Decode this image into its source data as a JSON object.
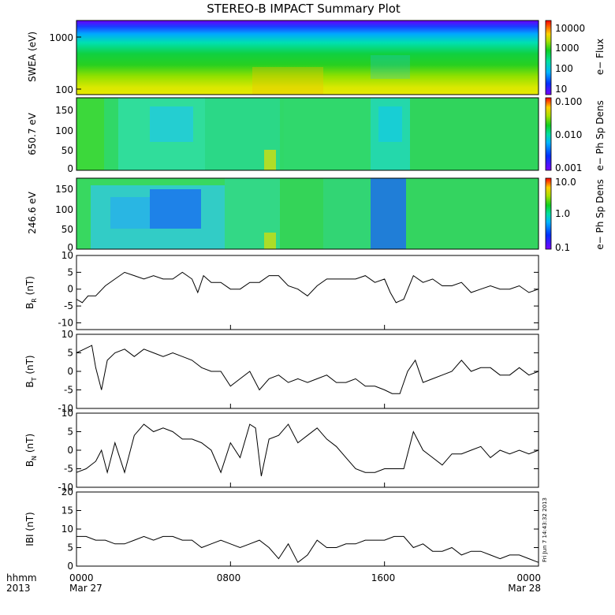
{
  "title": "STEREO-B IMPACT Summary Plot",
  "timestamp_label": "Fri Jun  7 14:43:32 2013",
  "x_axis": {
    "row1_label": "hhmm",
    "row2_label": "2013",
    "ticks": [
      "0000",
      "0800",
      "1600",
      "0000"
    ],
    "dates": [
      "Mar 27",
      "Mar 28"
    ]
  },
  "colors": {
    "trace": "#000000",
    "spectrum_scale": [
      "#7a00ff",
      "#0030ff",
      "#00b4ff",
      "#00e0a0",
      "#10d020",
      "#a8e000",
      "#ffd000",
      "#ff6000",
      "#ff0000"
    ]
  },
  "chart_data": [
    {
      "type": "heatmap",
      "ylabel": "SWEA (eV)",
      "yscale": "log",
      "yticks": [
        "1000",
        "100"
      ],
      "colorbar": {
        "label": "e− Flux",
        "ticks": [
          "10000",
          "1000",
          "100",
          "10"
        ]
      }
    },
    {
      "type": "heatmap",
      "ylabel": "650.7 eV",
      "yticks": [
        "150",
        "100",
        "50",
        "0"
      ],
      "ylim": [
        0,
        180
      ],
      "colorbar": {
        "label": "e− Ph Sp Dens",
        "ticks": [
          "0.100",
          "0.010",
          "0.001"
        ]
      }
    },
    {
      "type": "heatmap",
      "ylabel": "246.6 eV",
      "yticks": [
        "150",
        "100",
        "50",
        "0"
      ],
      "ylim": [
        0,
        180
      ],
      "colorbar": {
        "label": "e− Ph Sp Dens",
        "ticks": [
          "10.0",
          "1.0",
          "0.1"
        ]
      }
    },
    {
      "type": "line",
      "ylabel": "B_R (nT)",
      "ylabel_main": "B",
      "ylabel_sub": "R",
      "ylabel_tail": " (nT)",
      "ylim": [
        -12,
        10
      ],
      "yticks": [
        "10",
        "5",
        "0",
        "-5",
        "-10"
      ],
      "x": [
        0,
        0.3,
        0.6,
        1,
        1.5,
        2,
        2.5,
        3,
        3.5,
        4,
        4.5,
        5,
        5.5,
        6,
        6.3,
        6.6,
        7,
        7.5,
        8,
        8.5,
        9,
        9.5,
        10,
        10.5,
        11,
        11.5,
        12,
        12.5,
        13,
        13.5,
        14,
        14.5,
        15,
        15.5,
        16,
        16.3,
        16.6,
        17,
        17.5,
        18,
        18.5,
        19,
        19.5,
        20,
        20.5,
        21,
        21.5,
        22,
        22.5,
        23,
        23.5,
        24
      ],
      "y": [
        -3,
        -4,
        -2,
        -2,
        1,
        3,
        5,
        4,
        3,
        4,
        3,
        3,
        5,
        3,
        -1,
        4,
        2,
        2,
        0,
        0,
        2,
        2,
        4,
        4,
        1,
        0,
        -2,
        1,
        3,
        3,
        3,
        3,
        4,
        2,
        3,
        -1,
        -4,
        -3,
        4,
        2,
        3,
        1,
        1,
        2,
        -1,
        0,
        1,
        0,
        0,
        1,
        -1,
        0
      ]
    },
    {
      "type": "line",
      "ylabel": "B_T (nT)",
      "ylabel_main": "B",
      "ylabel_sub": "T",
      "ylabel_tail": " (nT)",
      "ylim": [
        -10,
        10
      ],
      "yticks": [
        "10",
        "5",
        "0",
        "-5",
        "-10"
      ],
      "x": [
        0,
        0.4,
        0.8,
        1,
        1.3,
        1.6,
        2,
        2.5,
        3,
        3.5,
        4,
        4.5,
        5,
        5.5,
        6,
        6.5,
        7,
        7.5,
        8,
        8.5,
        9,
        9.5,
        10,
        10.5,
        11,
        11.5,
        12,
        12.5,
        13,
        13.5,
        14,
        14.5,
        15,
        15.5,
        16,
        16.4,
        16.8,
        17.2,
        17.6,
        18,
        18.5,
        19,
        19.5,
        20,
        20.5,
        21,
        21.5,
        22,
        22.5,
        23,
        23.5,
        24
      ],
      "y": [
        5,
        6,
        7,
        1,
        -5,
        3,
        5,
        6,
        4,
        6,
        5,
        4,
        5,
        4,
        3,
        1,
        0,
        0,
        -4,
        -2,
        0,
        -5,
        -2,
        -1,
        -3,
        -2,
        -3,
        -2,
        -1,
        -3,
        -3,
        -2,
        -4,
        -4,
        -5,
        -6,
        -6,
        0,
        3,
        -3,
        -2,
        -1,
        0,
        3,
        0,
        1,
        1,
        -1,
        -1,
        1,
        -1,
        0
      ]
    },
    {
      "type": "line",
      "ylabel": "B_N (nT)",
      "ylabel_main": "B",
      "ylabel_sub": "N",
      "ylabel_tail": " (nT)",
      "ylim": [
        -10,
        10
      ],
      "yticks": [
        "10",
        "5",
        "0",
        "-5",
        "-10"
      ],
      "x": [
        0,
        0.5,
        1,
        1.3,
        1.6,
        2,
        2.5,
        3,
        3.5,
        4,
        4.5,
        5,
        5.5,
        6,
        6.5,
        7,
        7.5,
        8,
        8.5,
        9,
        9.3,
        9.6,
        10,
        10.5,
        11,
        11.5,
        12,
        12.5,
        13,
        13.5,
        14,
        14.5,
        15,
        15.5,
        16,
        16.5,
        17,
        17.5,
        18,
        18.5,
        19,
        19.5,
        20,
        20.5,
        21,
        21.5,
        22,
        22.5,
        23,
        23.5,
        24
      ],
      "y": [
        -6,
        -5,
        -3,
        0,
        -6,
        2,
        -6,
        4,
        7,
        5,
        6,
        5,
        3,
        3,
        2,
        0,
        -6,
        2,
        -2,
        7,
        6,
        -7,
        3,
        4,
        7,
        2,
        4,
        6,
        3,
        1,
        -2,
        -5,
        -6,
        -6,
        -5,
        -5,
        -5,
        5,
        0,
        -2,
        -4,
        -1,
        -1,
        0,
        1,
        -2,
        0,
        -1,
        0,
        -1,
        0
      ]
    },
    {
      "type": "line",
      "ylabel": "|B| (nT)",
      "ylabel_main": "IBI (nT)",
      "ylabel_sub": "",
      "ylabel_tail": "",
      "ylim": [
        0,
        20
      ],
      "yticks": [
        "20",
        "15",
        "10",
        "5",
        "0"
      ],
      "x": [
        0,
        0.5,
        1,
        1.5,
        2,
        2.5,
        3,
        3.5,
        4,
        4.5,
        5,
        5.5,
        6,
        6.5,
        7,
        7.5,
        8,
        8.5,
        9,
        9.5,
        10,
        10.5,
        11,
        11.5,
        12,
        12.5,
        13,
        13.5,
        14,
        14.5,
        15,
        15.5,
        16,
        16.5,
        17,
        17.5,
        18,
        18.5,
        19,
        19.5,
        20,
        20.5,
        21,
        21.5,
        22,
        22.5,
        23,
        23.5,
        24
      ],
      "y": [
        8,
        8,
        7,
        7,
        6,
        6,
        7,
        8,
        7,
        8,
        8,
        7,
        7,
        5,
        6,
        7,
        6,
        5,
        6,
        7,
        5,
        2,
        6,
        1,
        3,
        7,
        5,
        5,
        6,
        6,
        7,
        7,
        7,
        8,
        8,
        5,
        6,
        4,
        4,
        5,
        3,
        4,
        4,
        3,
        2,
        3,
        3,
        2,
        1
      ]
    }
  ]
}
